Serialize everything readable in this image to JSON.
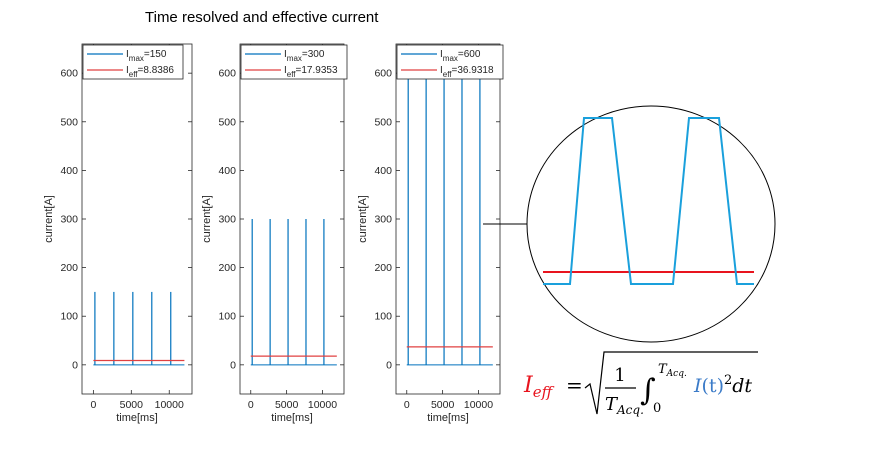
{
  "figure_title": "Time resolved and effective current",
  "chart_data": [
    {
      "type": "line",
      "xlabel": "time[ms]",
      "ylabel": "current[A]",
      "xlim": [
        -1500,
        13000
      ],
      "ylim": [
        -60,
        660
      ],
      "xticks": [
        0,
        5000,
        10000
      ],
      "xtick_labels": [
        "0",
        "5000",
        "10000"
      ],
      "yticks": [
        0,
        100,
        200,
        300,
        400,
        500,
        600
      ],
      "ytick_labels": [
        "0",
        "100",
        "200",
        "300",
        "400",
        "500",
        "600"
      ],
      "pulse_times": [
        200,
        2700,
        5200,
        7700,
        10200
      ],
      "x_end": 12000,
      "series": [
        {
          "name": "Imax",
          "label_main": "I",
          "label_sub": "max",
          "label_value": "=150",
          "color": "#0072BD",
          "peak": 150
        },
        {
          "name": "Ieff",
          "label_main": "I",
          "label_sub": "eff",
          "label_value": "=8.8386",
          "color": "#D95319",
          "value": 8.8386
        }
      ]
    },
    {
      "type": "line",
      "xlabel": "time[ms]",
      "ylabel": "current[A]",
      "xlim": [
        -1500,
        13000
      ],
      "ylim": [
        -60,
        660
      ],
      "xticks": [
        0,
        5000,
        10000
      ],
      "xtick_labels": [
        "0",
        "5000",
        "10000"
      ],
      "yticks": [
        0,
        100,
        200,
        300,
        400,
        500,
        600
      ],
      "ytick_labels": [
        "0",
        "100",
        "200",
        "300",
        "400",
        "500",
        "600"
      ],
      "pulse_times": [
        200,
        2700,
        5200,
        7700,
        10200
      ],
      "x_end": 12000,
      "series": [
        {
          "name": "Imax",
          "label_main": "I",
          "label_sub": "max",
          "label_value": "=300",
          "color": "#0072BD",
          "peak": 300
        },
        {
          "name": "Ieff",
          "label_main": "I",
          "label_sub": "eff",
          "label_value": "=17.9353",
          "color": "#D95319",
          "value": 17.9353
        }
      ]
    },
    {
      "type": "line",
      "xlabel": "time[ms]",
      "ylabel": "current[A]",
      "xlim": [
        -1500,
        13000
      ],
      "ylim": [
        -60,
        660
      ],
      "xticks": [
        0,
        5000,
        10000
      ],
      "xtick_labels": [
        "0",
        "5000",
        "10000"
      ],
      "yticks": [
        0,
        100,
        200,
        300,
        400,
        500,
        600
      ],
      "ytick_labels": [
        "0",
        "100",
        "200",
        "300",
        "400",
        "500",
        "600"
      ],
      "pulse_times": [
        200,
        2700,
        5200,
        7700,
        10200
      ],
      "x_end": 12000,
      "series": [
        {
          "name": "Imax",
          "label_main": "I",
          "label_sub": "max",
          "label_value": "=600",
          "color": "#0072BD",
          "peak": 600
        },
        {
          "name": "Ieff",
          "label_main": "I",
          "label_sub": "eff",
          "label_value": "=36.9318",
          "color": "#D95319",
          "value": 36.9318
        }
      ]
    }
  ],
  "zoom_inset": {
    "pulse_color": "#1AA0DC",
    "effective_color": "#E8141E"
  },
  "formula": {
    "lhs_main": "I",
    "lhs_sub": "eff",
    "equals": "=",
    "numerator": "1",
    "denominator_main": "T",
    "denominator_sub": "Acq.",
    "upper_limit_main": "T",
    "upper_limit_sub": "Acq.",
    "lower_limit": "0",
    "integrand_i": "I",
    "integrand_t": "(t)",
    "power": "2",
    "differential": "dt",
    "lhs_color": "#E8141E",
    "integrand_color": "#3B7BC8"
  }
}
